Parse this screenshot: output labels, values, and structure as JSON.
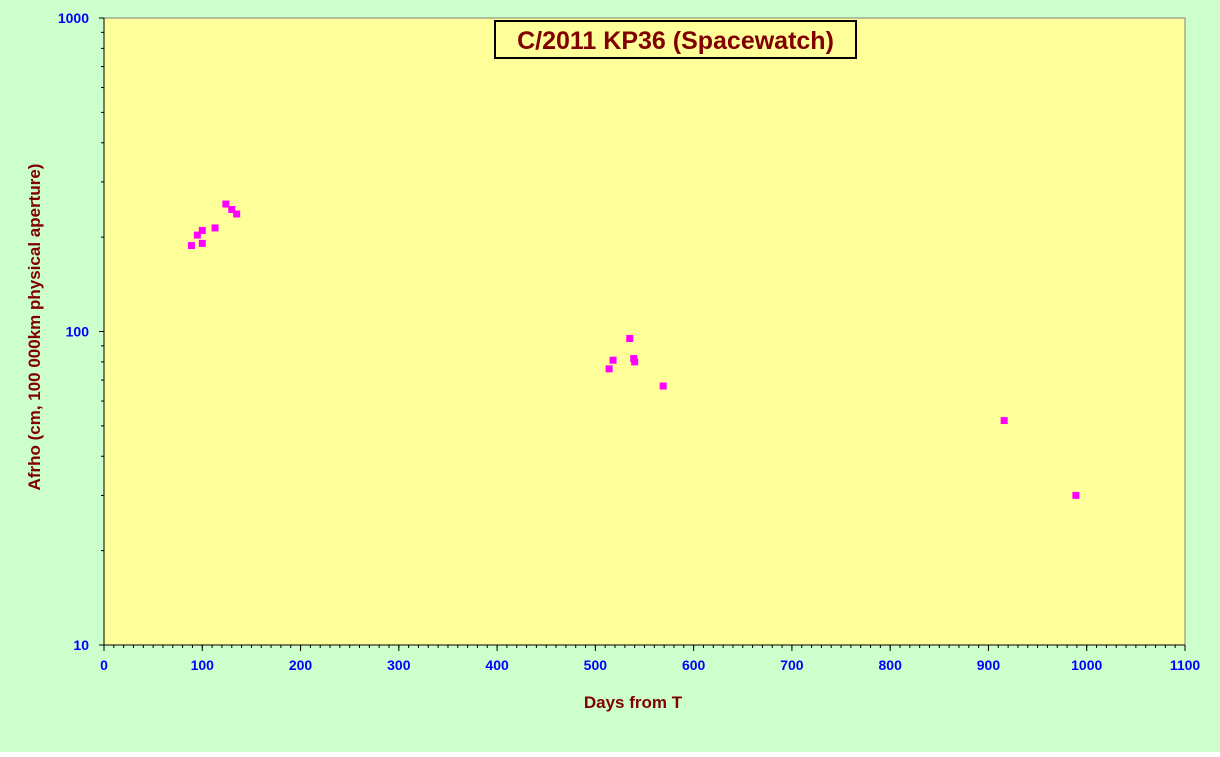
{
  "chart_data": {
    "type": "scatter",
    "title": "C/2011 KP36 (Spacewatch)",
    "xlabel": "Days from T",
    "ylabel": "Afrho (cm, 100 000km physical aperture)",
    "xlim": [
      0,
      1100
    ],
    "ylim": [
      10,
      1000
    ],
    "y_scale": "log",
    "x_ticks": [
      "0",
      "100",
      "200",
      "300",
      "400",
      "500",
      "600",
      "700",
      "800",
      "900",
      "1000",
      "1100"
    ],
    "y_ticks": [
      "10",
      "100",
      "1000"
    ],
    "grid": false,
    "series": [
      {
        "marker": "square",
        "points": [
          [
            89,
            188
          ],
          [
            95,
            203
          ],
          [
            100,
            210
          ],
          [
            100,
            191
          ],
          [
            113,
            214
          ],
          [
            124,
            255
          ],
          [
            130,
            245
          ],
          [
            135,
            237
          ],
          [
            514,
            76
          ],
          [
            518,
            81
          ],
          [
            535,
            95
          ],
          [
            539,
            82
          ],
          [
            540,
            80
          ],
          [
            569,
            67
          ],
          [
            916,
            52
          ],
          [
            989,
            30
          ]
        ]
      }
    ],
    "colors": {
      "outer_background": "#ccffcc",
      "plot_background": "#ffff99",
      "marker": "#ff00ff",
      "title_text": "#800000",
      "axis_label_text": "#800000",
      "tick_label_text": "#0000ff"
    }
  }
}
